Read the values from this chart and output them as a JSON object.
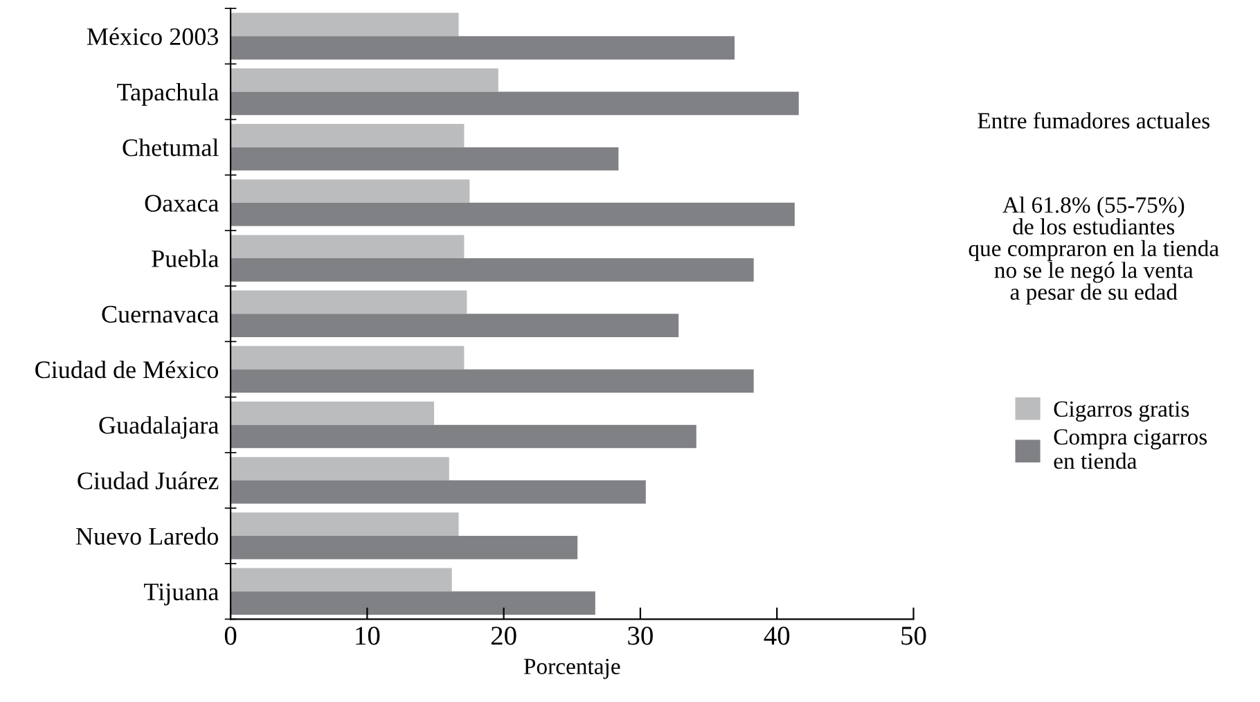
{
  "chart_data": {
    "type": "bar",
    "orientation": "horizontal",
    "xlabel": "Porcentaje",
    "categories": [
      "México 2003",
      "Tapachula",
      "Chetumal",
      "Oaxaca",
      "Puebla",
      "Cuernavaca",
      "Ciudad de México",
      "Guadalajara",
      "Ciudad Juárez",
      "Nuevo Laredo",
      "Tijuana"
    ],
    "series": [
      {
        "name": "Cigarros gratis",
        "color": "#bbbcbe",
        "values": [
          16.7,
          19.6,
          17.1,
          17.5,
          17.1,
          17.3,
          17.1,
          14.9,
          16.0,
          16.7,
          16.2
        ]
      },
      {
        "name": "Compra cigarros\nen tienda",
        "color": "#808184",
        "values": [
          36.9,
          41.6,
          28.4,
          41.3,
          38.3,
          32.8,
          38.3,
          34.1,
          30.4,
          25.4,
          26.7
        ]
      }
    ],
    "xlim": [
      0,
      50
    ],
    "xticks": [
      0,
      10,
      20,
      30,
      40,
      50
    ],
    "grid": false,
    "legend": "right",
    "annotations": [
      "Entre fumadores actuales",
      "Al 61.8% (55-75%)\nde los estudiantes\nque compraron en la tienda\nno se le negó la venta\na pesar de su edad"
    ]
  }
}
